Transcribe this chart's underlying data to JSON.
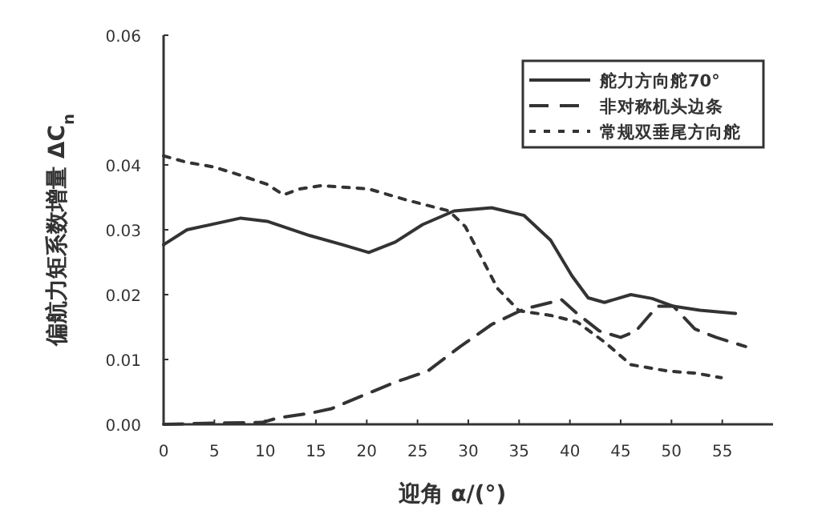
{
  "chart_data": {
    "type": "line",
    "xlabel": "迎角 α/(°)",
    "ylabel": "偏航力矩系数增量 ΔC$_{n}$",
    "xlim": [
      0,
      60
    ],
    "ylim": [
      0,
      0.06
    ],
    "xticks": [
      0,
      5,
      10,
      15,
      20,
      25,
      30,
      35,
      40,
      45,
      50,
      55
    ],
    "yticks": [
      {
        "value": 0,
        "label": "0.00"
      },
      {
        "value": 0.01,
        "label": "0.01"
      },
      {
        "value": 0.02,
        "label": "0.02"
      },
      {
        "value": 0.03,
        "label": "0.03"
      },
      {
        "value": 0.04,
        "label": "0.04"
      },
      {
        "value": 0.06,
        "label": "0.06"
      }
    ],
    "grid": false,
    "legend": "top right",
    "marker": "none",
    "series": [
      {
        "name": "舵力方向舵70°",
        "color": "#333333",
        "line_style": "solid",
        "x": [
          0,
          2.3,
          7.6,
          10.2,
          14.4,
          17.6,
          20.2,
          22.8,
          25.5,
          28.6,
          32.3,
          35.5,
          38.1,
          40.2,
          41.8,
          43.4,
          46,
          48.1,
          50.2,
          52.8,
          56.3
        ],
        "values": [
          0.0277,
          0.03,
          0.0318,
          0.0313,
          0.0291,
          0.0277,
          0.0265,
          0.0281,
          0.0308,
          0.0329,
          0.0334,
          0.0322,
          0.0284,
          0.0229,
          0.0195,
          0.0188,
          0.02,
          0.0194,
          0.0182,
          0.0176,
          0.0171
        ]
      },
      {
        "name": "非对称机头边条",
        "color": "#333333",
        "line_style": "dashed",
        "x": [
          0,
          5,
          9.7,
          11.3,
          14.4,
          16.5,
          19.7,
          22.8,
          26,
          29.2,
          32.3,
          35.5,
          39.2,
          40.7,
          42.9,
          45,
          46.5,
          48.6,
          50.2,
          52.3,
          54.4,
          57.3
        ],
        "values": [
          0.0,
          0.0002,
          0.0003,
          0.001,
          0.0017,
          0.0024,
          0.0045,
          0.0065,
          0.0082,
          0.012,
          0.0154,
          0.0178,
          0.0192,
          0.0171,
          0.0144,
          0.0134,
          0.0144,
          0.0182,
          0.0182,
          0.0147,
          0.0134,
          0.012
        ]
      },
      {
        "name": "常规双垂尾方向舵",
        "color": "#333333",
        "line_style": "dotted",
        "x": [
          0,
          2.3,
          4.9,
          7.6,
          10.2,
          11.8,
          13.4,
          15.5,
          20.2,
          23.9,
          28.1,
          29.7,
          31.3,
          32.9,
          35,
          38.1,
          40.7,
          43.4,
          46,
          49.7,
          52.3,
          54.9
        ],
        "values": [
          0.0414,
          0.0404,
          0.0397,
          0.0384,
          0.037,
          0.0354,
          0.0363,
          0.0368,
          0.0363,
          0.0346,
          0.0329,
          0.0305,
          0.0257,
          0.0209,
          0.0175,
          0.0168,
          0.0158,
          0.0127,
          0.0092,
          0.0082,
          0.0079,
          0.0072
        ]
      }
    ]
  }
}
